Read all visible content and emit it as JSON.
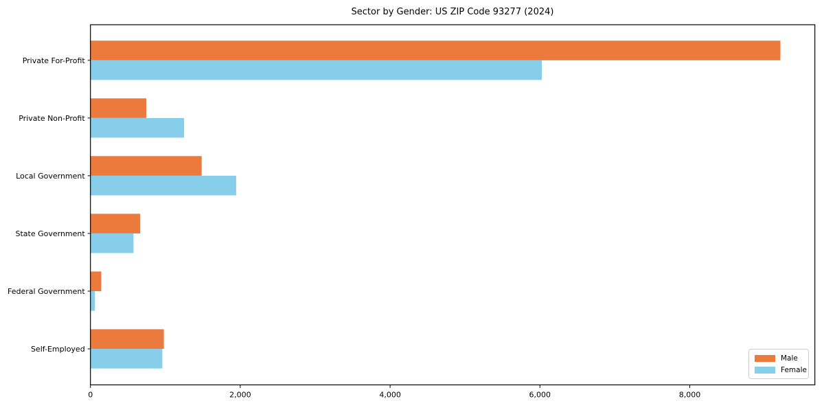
{
  "window": {
    "background": "#ffffff"
  },
  "chart_data": {
    "type": "bar",
    "orientation": "horizontal",
    "title": "Sector by Gender: US ZIP Code 93277 (2024)",
    "categories": [
      "Private For-Profit",
      "Private Non-Profit",
      "Local Government",
      "State Government",
      "Federal Government",
      "Self-Employed"
    ],
    "series": [
      {
        "name": "Male",
        "color": "#EB7A3C",
        "values": [
          9210,
          745,
          1485,
          665,
          145,
          980
        ]
      },
      {
        "name": "Female",
        "color": "#87CEEB",
        "values": [
          6025,
          1250,
          1945,
          575,
          60,
          960
        ]
      }
    ],
    "xlabel": "",
    "ylabel": "",
    "xlim": [
      0,
      9670
    ],
    "x_ticks": [
      {
        "value": 0,
        "label": "0"
      },
      {
        "value": 2000,
        "label": "2,000"
      },
      {
        "value": 4000,
        "label": "4,000"
      },
      {
        "value": 6000,
        "label": "6,000"
      },
      {
        "value": 8000,
        "label": "8,000"
      }
    ],
    "grid": false,
    "legend": {
      "position": "lower right",
      "entries": [
        "Male",
        "Female"
      ]
    },
    "axis_color": "#000000",
    "legend_border_color": "#cccccc"
  }
}
